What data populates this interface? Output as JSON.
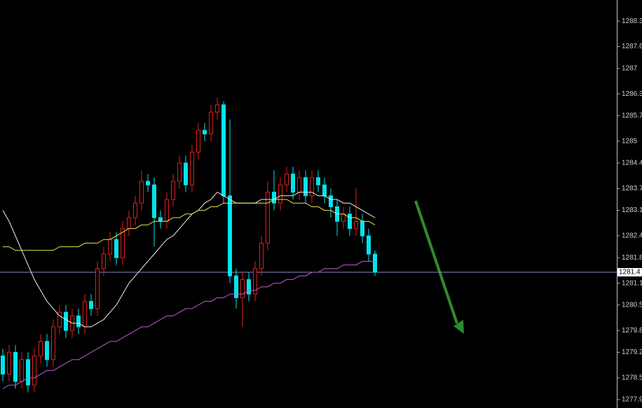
{
  "chart_data": {
    "type": "candlestick",
    "up_color": "#e0201c",
    "down_color": "#00e5ee",
    "open": [
      1279.1,
      1278.6,
      1279.2,
      1278.4,
      1279.0,
      1278.3,
      1279.1,
      1279.5,
      1279.0,
      1279.9,
      1280.3,
      1279.8,
      1280.2,
      1279.9,
      1280.6,
      1280.4,
      1281.5,
      1281.9,
      1282.3,
      1281.8,
      1282.6,
      1282.9,
      1283.3,
      1283.9,
      1283.8,
      1282.9,
      1282.8,
      1283.4,
      1283.9,
      1284.4,
      1283.8,
      1284.7,
      1285.3,
      1285.2,
      1285.8,
      1286.0,
      1283.5,
      1281.3,
      1280.7,
      1281.2,
      1280.8,
      1281.5,
      1282.2,
      1283.6,
      1283.3,
      1283.8,
      1284.1,
      1283.6,
      1284.0,
      1283.5,
      1284.0,
      1283.8,
      1283.5,
      1283.2,
      1282.8,
      1283.0,
      1282.6,
      1282.8,
      1282.4,
      1281.9
    ],
    "high": [
      1279.3,
      1279.4,
      1279.4,
      1279.2,
      1279.2,
      1279.3,
      1279.7,
      1279.7,
      1280.1,
      1280.5,
      1280.5,
      1280.4,
      1280.4,
      1280.8,
      1280.8,
      1281.7,
      1282.1,
      1282.5,
      1282.5,
      1282.8,
      1283.1,
      1283.5,
      1284.2,
      1284.1,
      1284.0,
      1283.1,
      1283.6,
      1284.1,
      1284.6,
      1284.6,
      1284.9,
      1285.5,
      1285.5,
      1286.0,
      1286.2,
      1286.1,
      1285.6,
      1281.5,
      1281.4,
      1281.4,
      1281.7,
      1282.4,
      1283.9,
      1284.2,
      1284.0,
      1284.3,
      1284.3,
      1284.2,
      1284.2,
      1284.2,
      1284.2,
      1284.0,
      1283.7,
      1283.4,
      1283.2,
      1283.2,
      1283.7,
      1283.0,
      1282.6,
      1282.0
    ],
    "low": [
      1278.4,
      1278.4,
      1278.2,
      1278.2,
      1278.1,
      1278.1,
      1278.9,
      1278.8,
      1278.8,
      1279.7,
      1279.6,
      1279.6,
      1279.7,
      1279.7,
      1280.2,
      1280.2,
      1281.3,
      1281.7,
      1281.6,
      1281.6,
      1282.4,
      1282.7,
      1283.1,
      1283.6,
      1282.1,
      1282.6,
      1282.6,
      1283.2,
      1283.7,
      1283.6,
      1283.6,
      1284.5,
      1285.0,
      1285.0,
      1285.6,
      1283.3,
      1281.1,
      1280.4,
      1279.9,
      1280.6,
      1280.6,
      1281.3,
      1282.0,
      1283.1,
      1283.1,
      1283.6,
      1283.4,
      1283.4,
      1283.3,
      1283.3,
      1283.6,
      1283.3,
      1282.9,
      1282.4,
      1282.6,
      1282.4,
      1282.4,
      1282.2,
      1281.7,
      1281.3
    ],
    "close": [
      1278.6,
      1279.2,
      1278.4,
      1279.0,
      1278.3,
      1279.1,
      1279.5,
      1279.0,
      1279.9,
      1280.3,
      1279.8,
      1280.2,
      1279.9,
      1280.6,
      1280.4,
      1281.5,
      1281.9,
      1282.3,
      1281.8,
      1282.6,
      1282.9,
      1283.3,
      1283.9,
      1283.8,
      1282.9,
      1282.8,
      1283.4,
      1283.9,
      1284.4,
      1283.8,
      1284.7,
      1285.3,
      1285.2,
      1285.8,
      1286.0,
      1283.5,
      1281.3,
      1280.7,
      1281.2,
      1280.8,
      1281.5,
      1282.2,
      1283.6,
      1283.3,
      1283.8,
      1284.1,
      1283.6,
      1284.0,
      1283.5,
      1284.0,
      1283.8,
      1283.5,
      1283.2,
      1282.8,
      1283.0,
      1282.6,
      1282.8,
      1282.4,
      1281.9,
      1281.4
    ],
    "series": [
      {
        "color": "#f0f0f0",
        "values": [
          1283.1,
          1282.8,
          1282.4,
          1282.0,
          1281.6,
          1281.2,
          1280.9,
          1280.6,
          1280.4,
          1280.2,
          1280.1,
          1280.0,
          1280.0,
          1279.9,
          1279.9,
          1280.0,
          1280.1,
          1280.3,
          1280.5,
          1280.8,
          1281.1,
          1281.3,
          1281.5,
          1281.7,
          1281.9,
          1282.1,
          1282.3,
          1282.4,
          1282.6,
          1282.8,
          1283.0,
          1283.1,
          1283.3,
          1283.4,
          1283.6,
          1283.5,
          1283.4,
          1283.3,
          1283.3,
          1283.3,
          1283.3,
          1283.4,
          1283.4,
          1283.4,
          1283.5,
          1283.5,
          1283.5,
          1283.6,
          1283.6,
          1283.6,
          1283.5,
          1283.5,
          1283.4,
          1283.4,
          1283.3,
          1283.3,
          1283.2,
          1283.1,
          1283.0,
          1282.9
        ]
      },
      {
        "color": "#e8e84a",
        "values": [
          1282.1,
          1282.1,
          1282.0,
          1282.0,
          1282.0,
          1282.0,
          1282.0,
          1282.0,
          1282.0,
          1282.1,
          1282.1,
          1282.1,
          1282.1,
          1282.2,
          1282.2,
          1282.2,
          1282.3,
          1282.3,
          1282.4,
          1282.5,
          1282.6,
          1282.6,
          1282.7,
          1282.7,
          1282.8,
          1282.8,
          1282.8,
          1282.9,
          1282.9,
          1283.0,
          1283.0,
          1283.1,
          1283.1,
          1283.2,
          1283.2,
          1283.3,
          1283.3,
          1283.3,
          1283.3,
          1283.3,
          1283.3,
          1283.3,
          1283.3,
          1283.4,
          1283.4,
          1283.4,
          1283.3,
          1283.3,
          1283.3,
          1283.2,
          1283.2,
          1283.1,
          1283.1,
          1283.0,
          1283.0,
          1282.9,
          1282.9,
          1282.8,
          1282.8,
          1282.7
        ]
      },
      {
        "color": "#c85ad8",
        "values": [
          1278.2,
          1278.3,
          1278.3,
          1278.4,
          1278.5,
          1278.5,
          1278.6,
          1278.7,
          1278.7,
          1278.8,
          1278.9,
          1279.0,
          1279.0,
          1279.1,
          1279.2,
          1279.3,
          1279.4,
          1279.5,
          1279.5,
          1279.6,
          1279.7,
          1279.8,
          1279.9,
          1279.9,
          1280.0,
          1280.1,
          1280.2,
          1280.2,
          1280.3,
          1280.4,
          1280.4,
          1280.5,
          1280.6,
          1280.6,
          1280.7,
          1280.7,
          1280.8,
          1280.8,
          1280.8,
          1280.9,
          1280.9,
          1281.0,
          1281.0,
          1281.1,
          1281.1,
          1281.2,
          1281.2,
          1281.3,
          1281.3,
          1281.4,
          1281.4,
          1281.5,
          1281.5,
          1281.5,
          1281.6,
          1281.6,
          1281.6,
          1281.7,
          1281.7,
          1281.7
        ]
      }
    ],
    "last_price": 1281.4,
    "last_price_color": "#8a88c8",
    "ylim": [
      1277.67,
      1288.88
    ],
    "yticks": [
      1288.3,
      1287.6,
      1287.0,
      1286.3,
      1285.7,
      1285.0,
      1284.4,
      1283.7,
      1283.1,
      1282.4,
      1281.8,
      1281.1,
      1280.5,
      1279.8,
      1279.2,
      1278.5,
      1277.9
    ]
  }
}
